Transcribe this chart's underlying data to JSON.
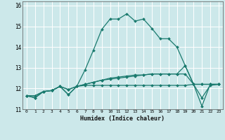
{
  "title": "",
  "xlabel": "Humidex (Indice chaleur)",
  "ylabel": "",
  "bg_color": "#cce8ea",
  "line_color": "#1a7a6e",
  "grid_color": "#ffffff",
  "xlim": [
    -0.5,
    23.5
  ],
  "ylim": [
    11.0,
    16.2
  ],
  "yticks": [
    11,
    12,
    13,
    14,
    15,
    16
  ],
  "xticks": [
    0,
    1,
    2,
    3,
    4,
    5,
    6,
    7,
    8,
    9,
    10,
    11,
    12,
    13,
    14,
    15,
    16,
    17,
    18,
    19,
    20,
    21,
    22,
    23
  ],
  "series": [
    [
      11.65,
      11.55,
      11.85,
      11.9,
      12.1,
      11.7,
      12.1,
      12.9,
      13.85,
      14.85,
      15.35,
      15.35,
      15.6,
      15.25,
      15.35,
      14.9,
      14.4,
      14.4,
      14.0,
      13.1,
      12.2,
      11.55,
      12.15,
      12.2
    ],
    [
      11.65,
      11.55,
      11.85,
      11.9,
      12.1,
      11.95,
      12.1,
      12.2,
      12.3,
      12.4,
      12.5,
      12.55,
      12.6,
      12.65,
      12.65,
      12.7,
      12.7,
      12.7,
      12.7,
      12.7,
      12.2,
      12.2,
      12.2,
      12.2
    ],
    [
      11.65,
      11.65,
      11.85,
      11.9,
      12.1,
      11.95,
      12.1,
      12.15,
      12.15,
      12.15,
      12.15,
      12.15,
      12.15,
      12.15,
      12.15,
      12.15,
      12.15,
      12.15,
      12.15,
      12.15,
      12.2,
      12.2,
      12.2,
      12.2
    ],
    [
      11.65,
      11.65,
      11.85,
      11.9,
      12.1,
      11.7,
      12.1,
      12.2,
      12.3,
      12.4,
      12.45,
      12.5,
      12.55,
      12.6,
      12.65,
      12.7,
      12.7,
      12.7,
      12.7,
      13.1,
      12.2,
      11.15,
      12.2,
      12.2
    ]
  ]
}
